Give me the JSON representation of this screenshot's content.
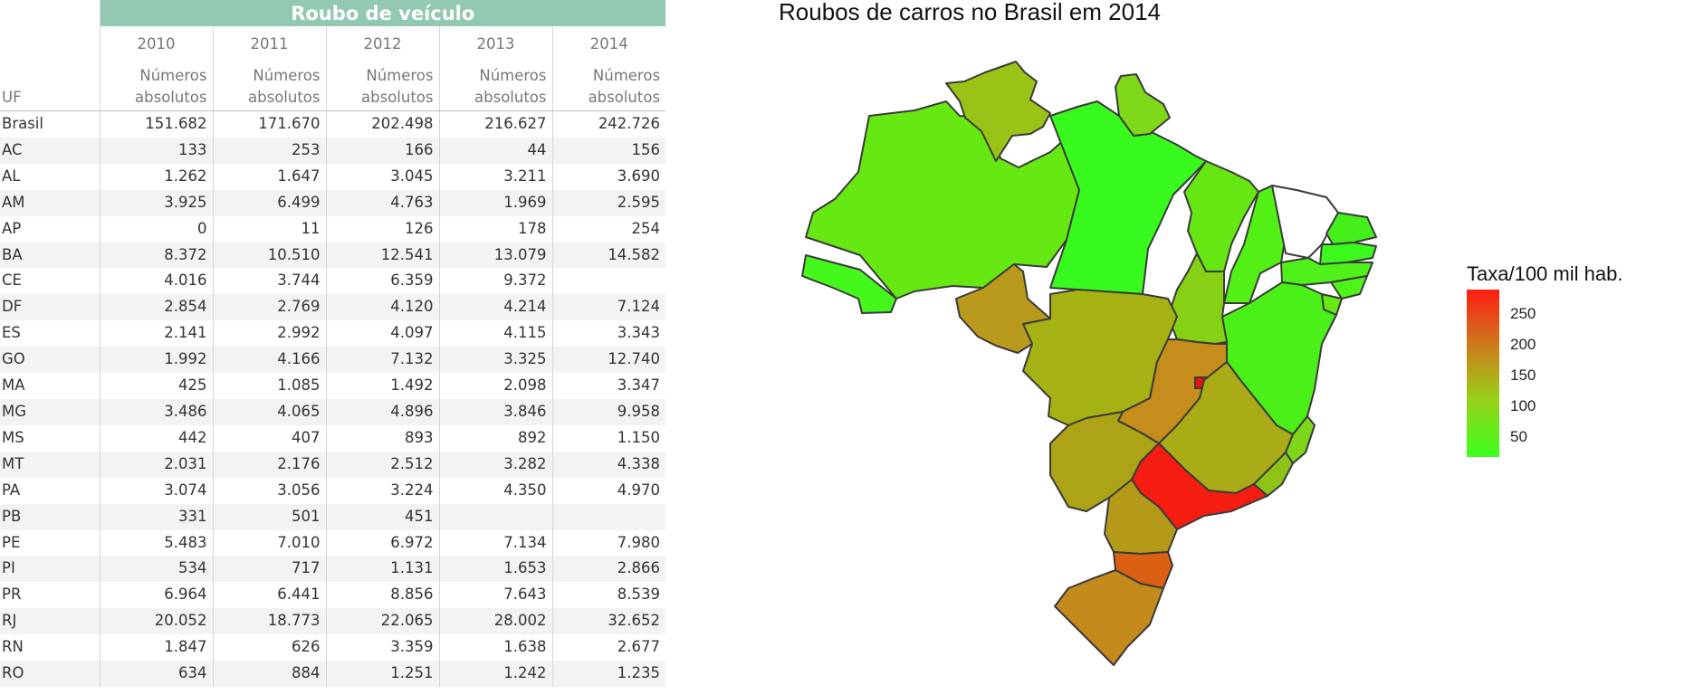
{
  "table": {
    "group_title": "Roubo de veículo",
    "uf_header": "UF",
    "years": [
      "2010",
      "2011",
      "2012",
      "2013",
      "2014"
    ],
    "subheader": [
      "Números",
      "absolutos"
    ],
    "rows": [
      {
        "uf": "Brasil",
        "values": [
          "151.682",
          "171.670",
          "202.498",
          "216.627",
          "242.726"
        ]
      },
      {
        "uf": "AC",
        "values": [
          "133",
          "253",
          "166",
          "44",
          "156"
        ]
      },
      {
        "uf": "AL",
        "values": [
          "1.262",
          "1.647",
          "3.045",
          "3.211",
          "3.690"
        ]
      },
      {
        "uf": "AM",
        "values": [
          "3.925",
          "6.499",
          "4.763",
          "1.969",
          "2.595"
        ]
      },
      {
        "uf": "AP",
        "values": [
          "0",
          "11",
          "126",
          "178",
          "254"
        ]
      },
      {
        "uf": "BA",
        "values": [
          "8.372",
          "10.510",
          "12.541",
          "13.079",
          "14.582"
        ]
      },
      {
        "uf": "CE",
        "values": [
          "4.016",
          "3.744",
          "6.359",
          "9.372",
          ""
        ]
      },
      {
        "uf": "DF",
        "values": [
          "2.854",
          "2.769",
          "4.120",
          "4.214",
          "7.124"
        ]
      },
      {
        "uf": "ES",
        "values": [
          "2.141",
          "2.992",
          "4.097",
          "4.115",
          "3.343"
        ]
      },
      {
        "uf": "GO",
        "values": [
          "1.992",
          "4.166",
          "7.132",
          "3.325",
          "12.740"
        ]
      },
      {
        "uf": "MA",
        "values": [
          "425",
          "1.085",
          "1.492",
          "2.098",
          "3.347"
        ]
      },
      {
        "uf": "MG",
        "values": [
          "3.486",
          "4.065",
          "4.896",
          "3.846",
          "9.958"
        ]
      },
      {
        "uf": "MS",
        "values": [
          "442",
          "407",
          "893",
          "892",
          "1.150"
        ]
      },
      {
        "uf": "MT",
        "values": [
          "2.031",
          "2.176",
          "2.512",
          "3.282",
          "4.338"
        ]
      },
      {
        "uf": "PA",
        "values": [
          "3.074",
          "3.056",
          "3.224",
          "4.350",
          "4.970"
        ]
      },
      {
        "uf": "PB",
        "values": [
          "331",
          "501",
          "451",
          "",
          ""
        ]
      },
      {
        "uf": "PE",
        "values": [
          "5.483",
          "7.010",
          "6.972",
          "7.134",
          "7.980"
        ]
      },
      {
        "uf": "PI",
        "values": [
          "534",
          "717",
          "1.131",
          "1.653",
          "2.866"
        ]
      },
      {
        "uf": "PR",
        "values": [
          "6.964",
          "6.441",
          "8.856",
          "7.643",
          "8.539"
        ]
      },
      {
        "uf": "RJ",
        "values": [
          "20.052",
          "18.773",
          "22.065",
          "28.002",
          "32.652"
        ]
      },
      {
        "uf": "RN",
        "values": [
          "1.847",
          "626",
          "3.359",
          "1.638",
          "2.677"
        ]
      },
      {
        "uf": "RO",
        "values": [
          "634",
          "884",
          "1.251",
          "1.242",
          "1.235"
        ]
      }
    ]
  },
  "map": {
    "title": "Roubos de carros no Brasil em 2014",
    "legend_title": "Taxa/100 mil hab.",
    "legend_ticks": [
      "250",
      "200",
      "150",
      "100",
      "50"
    ],
    "colors": {
      "low": "#3cff1f",
      "mid": "#c38d1c",
      "high": "#ff1d10",
      "border": "#3a3a3a"
    }
  },
  "chart_data": [
    {
      "type": "table",
      "title": "Roubo de veículo",
      "columns": [
        "UF",
        "2010",
        "2011",
        "2012",
        "2013",
        "2014"
      ],
      "unit": "Números absolutos"
    },
    {
      "type": "heatmap",
      "title": "Roubos de carros no Brasil em 2014",
      "legend_title": "Taxa/100 mil hab.",
      "legend_ticks": [
        50,
        100,
        150,
        200,
        250
      ]
    }
  ]
}
